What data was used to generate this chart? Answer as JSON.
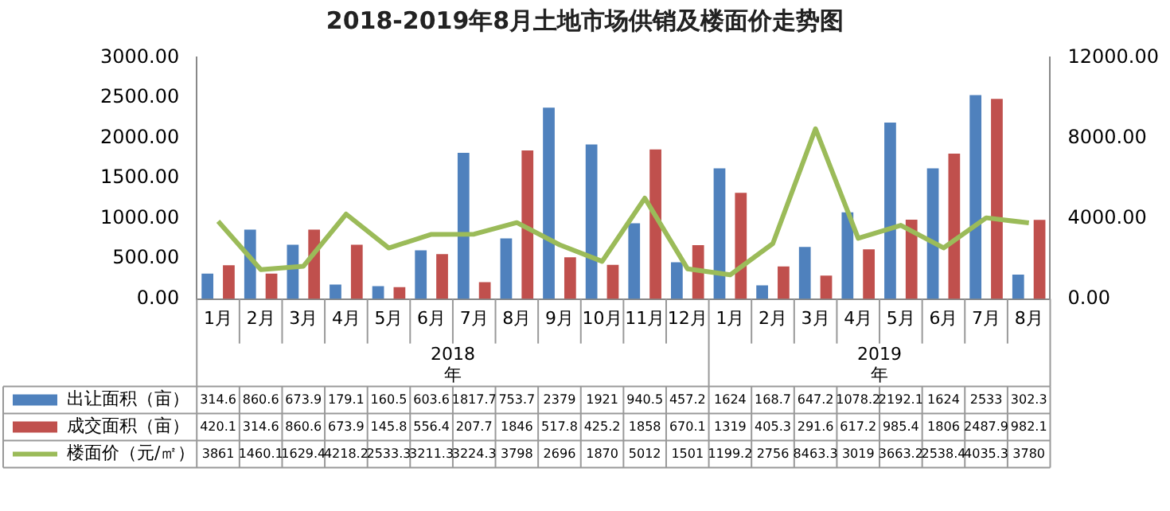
{
  "chart_data": {
    "type": "bar",
    "title": "2018-2019年8月土地市场供销及楼面价走势图",
    "categories": [
      "1月",
      "2月",
      "3月",
      "4月",
      "5月",
      "6月",
      "7月",
      "8月",
      "9月",
      "10月",
      "11月",
      "12月",
      "1月",
      "2月",
      "3月",
      "4月",
      "5月",
      "6月",
      "7月",
      "8月"
    ],
    "series": [
      {
        "name": "出让面积（亩）",
        "type": "bar",
        "color": "#4f81bd",
        "values": [
          314.6,
          860.6,
          673.9,
          179.1,
          160.5,
          603.6,
          1817.7,
          753.7,
          2379,
          1921,
          940.5,
          457.2,
          1624,
          168.7,
          647.2,
          1078.2,
          2192.1,
          1624,
          2533,
          302.3
        ]
      },
      {
        "name": "成交面积（亩）",
        "type": "bar",
        "color": "#c0504d",
        "values": [
          420.1,
          314.6,
          860.6,
          673.9,
          145.8,
          556.4,
          207.7,
          1846,
          517.8,
          425.2,
          1858,
          670.1,
          1319,
          405.3,
          291.6,
          617.2,
          985.4,
          1806,
          2487.9,
          982.1
        ]
      },
      {
        "name": "楼面价（元/㎡）",
        "type": "line",
        "axis": "y2",
        "color": "#9bbb59",
        "values": [
          3861,
          1460.1,
          1629.4,
          4218.2,
          2533.3,
          3211.3,
          3224.3,
          3798,
          2696,
          1870,
          5012,
          1501,
          1199.2,
          2756,
          8463.3,
          3019,
          3663.2,
          2538.4,
          4035.3,
          3780
        ]
      }
    ],
    "ylim": [
      0,
      3000
    ],
    "yticks": [
      {
        "value": 0,
        "label": "0.00"
      },
      {
        "value": 500,
        "label": "500.00"
      },
      {
        "value": 1000,
        "label": "1000.00"
      },
      {
        "value": 1500,
        "label": "1500.00"
      },
      {
        "value": 2000,
        "label": "2000.00"
      },
      {
        "value": 2500,
        "label": "2500.00"
      },
      {
        "value": 3000,
        "label": "3000.00"
      }
    ],
    "y2lim": [
      0,
      12000
    ],
    "y2ticks": [
      {
        "value": 0,
        "label": "0.00"
      },
      {
        "value": 4000,
        "label": "4000.00"
      },
      {
        "value": 8000,
        "label": "8000.00"
      },
      {
        "value": 12000,
        "label": "12000.00"
      }
    ],
    "annotations": [
      "2018年",
      "2019年"
    ],
    "grid": false,
    "legend": "bottom",
    "marker": "none",
    "data_labels": true
  }
}
